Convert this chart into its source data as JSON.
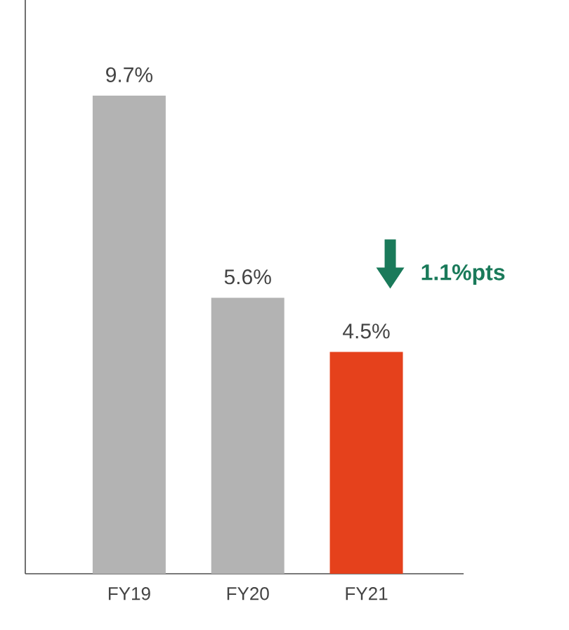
{
  "chart_data": {
    "type": "bar",
    "categories": [
      "FY19",
      "FY20",
      "FY21"
    ],
    "values": [
      9.7,
      5.6,
      4.5
    ],
    "colors": [
      "#b3b3b3",
      "#b3b3b3",
      "#e5411c"
    ],
    "value_labels": [
      "9.7%",
      "5.6%",
      "4.5%"
    ],
    "annotations": [
      "1.1%pts"
    ]
  }
}
